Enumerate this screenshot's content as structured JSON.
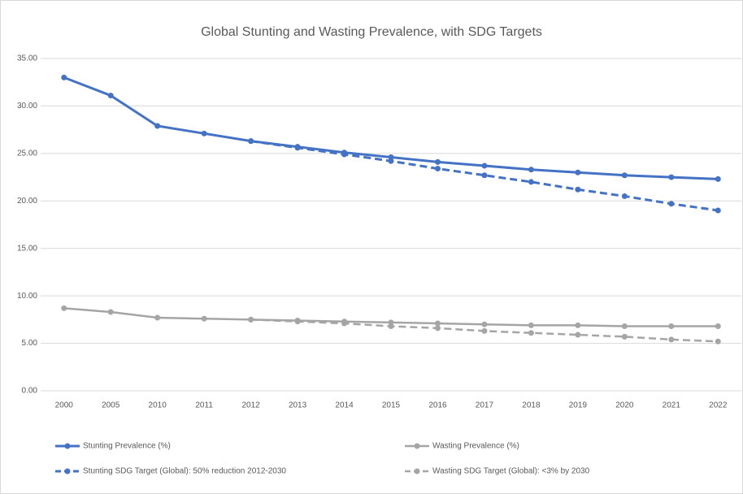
{
  "chart_data": {
    "type": "line",
    "title": "Global Stunting and Wasting Prevalence, with SDG Targets",
    "categories": [
      "2000",
      "2005",
      "2010",
      "2011",
      "2012",
      "2013",
      "2014",
      "2015",
      "2016",
      "2017",
      "2018",
      "2019",
      "2020",
      "2021",
      "2022"
    ],
    "series": [
      {
        "name": "Stunting Prevalence (%)",
        "color": "#4472c4",
        "dashed": false,
        "values": [
          33.0,
          31.1,
          27.9,
          27.1,
          26.3,
          25.7,
          25.1,
          24.6,
          24.1,
          23.7,
          23.3,
          23.0,
          22.7,
          22.5,
          22.3
        ]
      },
      {
        "name": "Wasting Prevalence (%)",
        "color": "#a5a5a5",
        "dashed": false,
        "values": [
          8.7,
          8.3,
          7.7,
          7.6,
          7.5,
          7.4,
          7.3,
          7.2,
          7.1,
          7.0,
          6.9,
          6.9,
          6.8,
          6.8,
          6.8
        ]
      },
      {
        "name": "Stunting SDG Target (Global): 50% reduction 2012-2030",
        "color": "#4472c4",
        "dashed": true,
        "values": [
          null,
          null,
          null,
          null,
          26.3,
          25.6,
          24.9,
          24.2,
          23.4,
          22.7,
          22.0,
          21.2,
          20.5,
          19.7,
          19.0
        ]
      },
      {
        "name": "Wasting SDG Target (Global): <3% by 2030",
        "color": "#a5a5a5",
        "dashed": true,
        "values": [
          null,
          null,
          null,
          null,
          7.5,
          7.3,
          7.1,
          6.8,
          6.6,
          6.3,
          6.1,
          5.9,
          5.7,
          5.4,
          5.2
        ]
      }
    ],
    "ylim": [
      0,
      35
    ],
    "yticks": [
      {
        "value": 0,
        "label": "0.00"
      },
      {
        "value": 5,
        "label": "5.00"
      },
      {
        "value": 10,
        "label": "10.00"
      },
      {
        "value": 15,
        "label": "15.00"
      },
      {
        "value": 20,
        "label": "20.00"
      },
      {
        "value": 25,
        "label": "25.00"
      },
      {
        "value": 30,
        "label": "30.00"
      },
      {
        "value": 35,
        "label": "35.00"
      }
    ],
    "grid": true,
    "legend": "bottom"
  }
}
